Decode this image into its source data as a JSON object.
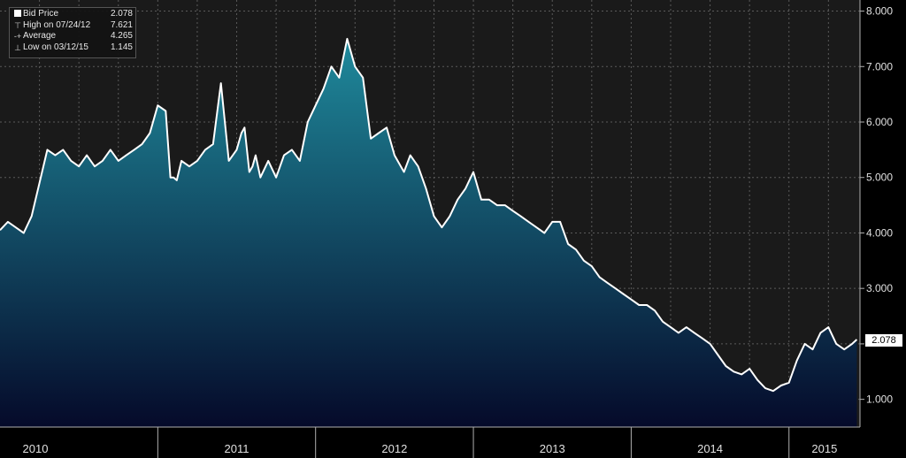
{
  "legend": {
    "rows": [
      {
        "symbol": "square-icon",
        "label": "Bid Price",
        "value": "2.078"
      },
      {
        "symbol": "high-marker-icon",
        "label": "High on 07/24/12",
        "value": "7.621"
      },
      {
        "symbol": "average-marker-icon",
        "label": "Average",
        "value": "4.265"
      },
      {
        "symbol": "low-marker-icon",
        "label": "Low on 03/12/15",
        "value": "1.145"
      }
    ]
  },
  "last_value_label": "2.078",
  "colors": {
    "background": "#000000",
    "plot_background": "#1a1a1a",
    "line": "#ffffff",
    "fill_top": "#1f8a9c",
    "fill_bottom": "#050a2a",
    "grid": "#5a5a5a"
  },
  "chart_data": {
    "type": "area",
    "title": "",
    "xlabel": "",
    "ylabel": "",
    "ylim": [
      0.5,
      8.2
    ],
    "xlim": [
      2010.0,
      2015.45
    ],
    "x_tick_labels": [
      "2010",
      "2011",
      "2012",
      "2013",
      "2014",
      "2015"
    ],
    "y_tick_labels": [
      "1.000",
      "2.000",
      "3.000",
      "4.000",
      "5.000",
      "6.000",
      "7.000",
      "8.000"
    ],
    "y_ticks": [
      1,
      2,
      3,
      4,
      5,
      6,
      7,
      8
    ],
    "grid": true,
    "series": [
      {
        "name": "Bid Price",
        "x": [
          2010.0,
          2010.05,
          2010.1,
          2010.15,
          2010.2,
          2010.25,
          2010.3,
          2010.35,
          2010.4,
          2010.45,
          2010.5,
          2010.55,
          2010.6,
          2010.65,
          2010.7,
          2010.75,
          2010.8,
          2010.85,
          2010.9,
          2010.95,
          2011.0,
          2011.05,
          2011.08,
          2011.1,
          2011.12,
          2011.15,
          2011.2,
          2011.25,
          2011.3,
          2011.35,
          2011.4,
          2011.45,
          2011.5,
          2011.53,
          2011.55,
          2011.58,
          2011.6,
          2011.62,
          2011.65,
          2011.7,
          2011.75,
          2011.8,
          2011.85,
          2011.9,
          2011.95,
          2012.0,
          2012.05,
          2012.1,
          2012.15,
          2012.2,
          2012.25,
          2012.3,
          2012.35,
          2012.4,
          2012.45,
          2012.5,
          2012.56,
          2012.6,
          2012.65,
          2012.7,
          2012.75,
          2012.8,
          2012.85,
          2012.9,
          2012.95,
          2013.0,
          2013.05,
          2013.1,
          2013.15,
          2013.2,
          2013.25,
          2013.3,
          2013.35,
          2013.4,
          2013.45,
          2013.5,
          2013.55,
          2013.6,
          2013.65,
          2013.7,
          2013.75,
          2013.8,
          2013.85,
          2013.9,
          2013.95,
          2014.0,
          2014.05,
          2014.1,
          2014.15,
          2014.2,
          2014.25,
          2014.3,
          2014.35,
          2014.4,
          2014.45,
          2014.5,
          2014.55,
          2014.6,
          2014.65,
          2014.7,
          2014.75,
          2014.8,
          2014.85,
          2014.9,
          2014.95,
          2015.0,
          2015.05,
          2015.1,
          2015.15,
          2015.2,
          2015.25,
          2015.3,
          2015.35,
          2015.4,
          2015.43
        ],
        "y": [
          4.05,
          4.2,
          4.1,
          4.0,
          4.3,
          4.9,
          5.5,
          5.4,
          5.5,
          5.3,
          5.2,
          5.4,
          5.2,
          5.3,
          5.5,
          5.3,
          5.4,
          5.5,
          5.6,
          5.8,
          6.3,
          6.2,
          5.0,
          5.0,
          4.95,
          5.3,
          5.2,
          5.3,
          5.5,
          5.6,
          6.7,
          5.3,
          5.5,
          5.8,
          5.9,
          5.1,
          5.2,
          5.4,
          5.0,
          5.3,
          5.0,
          5.4,
          5.5,
          5.3,
          6.0,
          6.3,
          6.6,
          7.0,
          6.8,
          7.5,
          7.0,
          6.8,
          5.7,
          5.8,
          5.9,
          5.4,
          5.1,
          5.4,
          5.2,
          4.8,
          4.3,
          4.1,
          4.3,
          4.6,
          4.8,
          5.1,
          4.6,
          4.6,
          4.5,
          4.5,
          4.4,
          4.3,
          4.2,
          4.1,
          4.0,
          4.2,
          4.2,
          3.8,
          3.7,
          3.5,
          3.4,
          3.2,
          3.1,
          3.0,
          2.9,
          2.8,
          2.7,
          2.7,
          2.6,
          2.4,
          2.3,
          2.2,
          2.3,
          2.2,
          2.1,
          2.0,
          1.8,
          1.6,
          1.5,
          1.45,
          1.55,
          1.35,
          1.2,
          1.15,
          1.25,
          1.3,
          1.7,
          2.0,
          1.9,
          2.2,
          2.3,
          2.0,
          1.9,
          2.0,
          2.078
        ]
      }
    ]
  }
}
